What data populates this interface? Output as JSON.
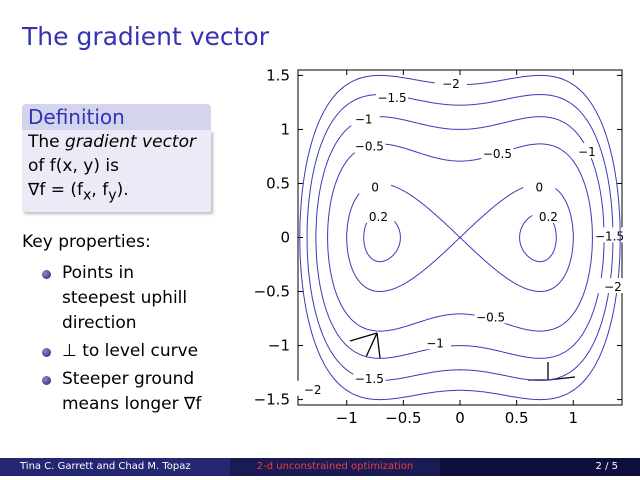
{
  "header": {
    "title": "The gradient vector"
  },
  "definition": {
    "title": "Definition",
    "line_1_before": "The ",
    "line_1_term": "gradient vector",
    "line_2": "of f(x, y) is",
    "formula_parts": [
      "∇f = (f",
      "x",
      ", f",
      "y",
      ")."
    ]
  },
  "properties": {
    "title": "Key properties:",
    "items": [
      [
        "Points in",
        "steepest uphill",
        "direction"
      ],
      [
        "⊥ to level curve"
      ],
      [
        "Steeper ground",
        "means longer ∇f"
      ]
    ]
  },
  "chart_data": {
    "type": "contour",
    "xlim": [
      -1.43,
      1.43
    ],
    "ylim": [
      -1.55,
      1.55
    ],
    "xticks": [
      {
        "value": -1,
        "label": "−1"
      },
      {
        "value": -0.5,
        "label": "−0.5"
      },
      0,
      0.5,
      1
    ],
    "yticks": [
      {
        "value": -1.5,
        "label": "−1.5"
      },
      {
        "value": -1,
        "label": "−1"
      },
      {
        "value": -0.5,
        "label": "−0.5"
      },
      0,
      0.5,
      1,
      1.5
    ],
    "color": "#3a3ab8",
    "levels": [
      0.2,
      0,
      {
        "value": -0.5,
        "label": "−0.5"
      },
      {
        "value": -1,
        "label": "−1"
      },
      {
        "value": -1.5,
        "label": "−1.5"
      },
      {
        "value": -2,
        "label": "−2"
      }
    ]
  },
  "footer": {
    "authors": "Tina C. Garrett and Chad M. Topaz",
    "talk": "2-d unconstrained optimization",
    "page": "2 / 5"
  }
}
